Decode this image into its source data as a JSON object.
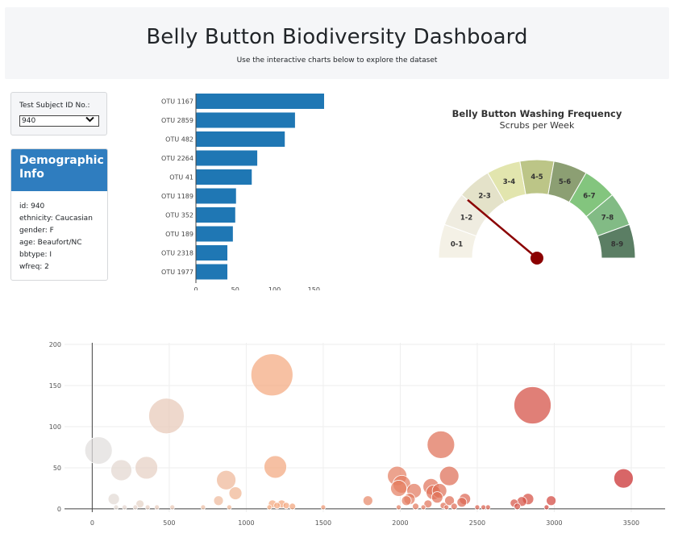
{
  "header": {
    "title": "Belly Button Biodiversity Dashboard",
    "subtitle": "Use the interactive charts below to explore the dataset"
  },
  "selector": {
    "label": "Test Subject ID No.:",
    "value": "940",
    "icon": "chevron-down-icon"
  },
  "demographics": {
    "title": "Demographic Info",
    "lines": [
      "id: 940",
      "ethnicity: Caucasian",
      "gender: F",
      "age: Beaufort/NC",
      "bbtype: I",
      "wfreq: 2"
    ]
  },
  "chart_data": [
    {
      "type": "bar",
      "orientation": "horizontal",
      "categories": [
        "OTU 1167",
        "OTU 2859",
        "OTU 482",
        "OTU 2264",
        "OTU 41",
        "OTU 1189",
        "OTU 352",
        "OTU 189",
        "OTU 2318",
        "OTU 1977"
      ],
      "values": [
        163,
        126,
        113,
        78,
        71,
        51,
        50,
        47,
        40,
        40
      ],
      "xlim": [
        0,
        163
      ],
      "xticks": [
        "0",
        "50",
        "100",
        "150"
      ],
      "xtick_values": [
        0,
        50,
        100,
        150
      ],
      "color": "#1f77b4"
    },
    {
      "type": "gauge",
      "title": "Belly Button Washing Frequency",
      "subtitle": "Scrubs per Week",
      "segments": [
        "0-1",
        "1-2",
        "2-3",
        "3-4",
        "4-5",
        "5-6",
        "6-7",
        "7-8",
        "8-9"
      ],
      "colors": [
        "#f4f1e6",
        "#efece0",
        "#e4e2c9",
        "#e2e5ae",
        "#bcc587",
        "#8c9f73",
        "#83c57e",
        "#82bb85",
        "#5b7e64"
      ],
      "value": 2,
      "range": [
        0,
        9
      ],
      "needle_color": "#8b0000"
    },
    {
      "type": "scatter",
      "subtype": "bubble",
      "xlim": [
        -180,
        3720
      ],
      "ylim": [
        -4,
        202
      ],
      "xticks": [
        "0",
        "500",
        "1000",
        "1500",
        "2000",
        "2500",
        "3000",
        "3500"
      ],
      "xtick_values": [
        0,
        500,
        1000,
        1500,
        2000,
        2500,
        3000,
        3500
      ],
      "yticks": [
        "0",
        "50",
        "100",
        "150",
        "200"
      ],
      "ytick_values": [
        0,
        50,
        100,
        150,
        200
      ],
      "x": [
        41,
        189,
        352,
        482,
        1167,
        1189,
        2264,
        2318,
        2859,
        3450,
        870,
        930,
        1980,
        1990,
        2010,
        2090,
        2200,
        2215,
        2240,
        2255,
        2320,
        2420,
        140,
        155,
        210,
        280,
        310,
        360,
        420,
        520,
        720,
        820,
        890,
        1150,
        1170,
        1200,
        1230,
        1260,
        1300,
        1500,
        1790,
        1990,
        2040,
        2060,
        2100,
        2150,
        2180,
        2280,
        2300,
        2350,
        2400,
        2500,
        2540,
        2570,
        2740,
        2760,
        2790,
        2830,
        2950,
        2980
      ],
      "y": [
        71,
        47,
        50,
        113,
        163,
        51,
        78,
        40,
        126,
        37,
        35,
        19,
        40,
        25,
        30,
        22,
        27,
        20,
        14,
        22,
        10,
        12,
        12,
        2,
        2,
        2,
        6,
        2,
        2,
        2,
        2,
        10,
        2,
        2,
        6,
        4,
        6,
        4,
        3,
        2,
        10,
        2,
        10,
        12,
        3,
        2,
        6,
        4,
        2,
        3,
        8,
        2,
        2,
        2,
        7,
        3,
        9,
        12,
        2,
        10
      ],
      "r": [
        17,
        13,
        14,
        22,
        26,
        14,
        17,
        12,
        23,
        12,
        12,
        8,
        12,
        10,
        11,
        9,
        10,
        9,
        7,
        9,
        6,
        7,
        7,
        3,
        3,
        3,
        5,
        3,
        3,
        3,
        3,
        6,
        3,
        3,
        5,
        4,
        5,
        4,
        4,
        3,
        6,
        3,
        6,
        7,
        4,
        3,
        5,
        4,
        3,
        4,
        6,
        3,
        3,
        3,
        5,
        4,
        6,
        7,
        3,
        6
      ]
    }
  ]
}
